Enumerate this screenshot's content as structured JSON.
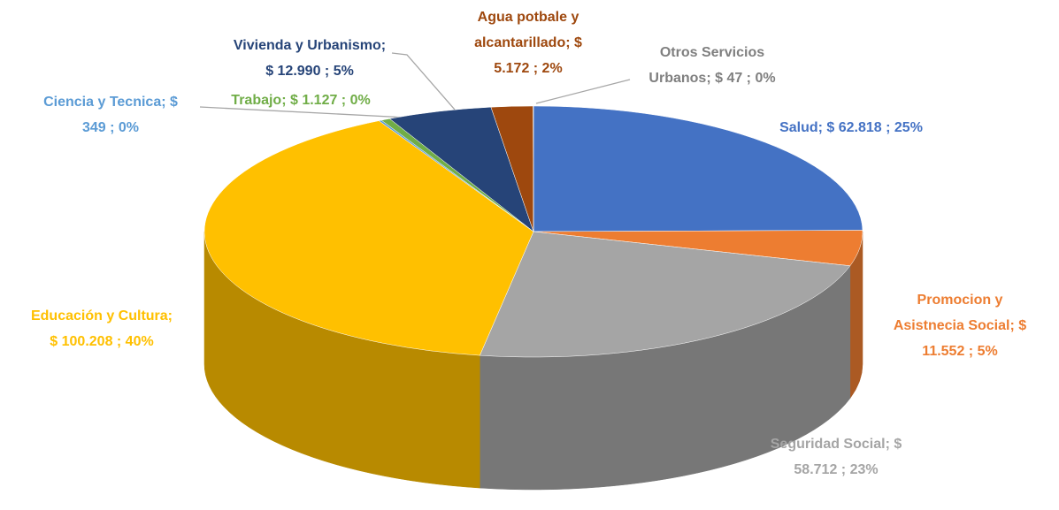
{
  "chart_data": {
    "type": "pie",
    "three_d": true,
    "labels": [
      [
        "Salud;  $ 62.818 ; 25%"
      ],
      [
        "Promocion y",
        "Asistnecia Social;  $",
        "11.552 ; 5%"
      ],
      [
        "Seguridad Social;  $",
        "58.712 ; 23%"
      ],
      [
        "Educación y Cultura;",
        "$ 100.208 ; 40%"
      ],
      [
        "Ciencia y Tecnica;  $",
        "349 ; 0%"
      ],
      [
        "Trabajo;  $ 1.127 ; 0%"
      ],
      [
        "Vivienda y Urbanismo;",
        "$ 12.990 ; 5%"
      ],
      [
        "Agua potbale y",
        "alcantarillado;  $",
        "5.172 ; 2%"
      ],
      [
        "Otros Servicios",
        "Urbanos;  $ 47 ; 0%"
      ]
    ],
    "values": [
      62818,
      11552,
      58712,
      100208,
      349,
      1127,
      12990,
      5172,
      47
    ],
    "colors": [
      "#4472c4",
      "#ed7d31",
      "#a5a5a5",
      "#ffc000",
      "#5b9bd5",
      "#70ad47",
      "#264478",
      "#9e480e",
      "#7f7f7f"
    ]
  }
}
